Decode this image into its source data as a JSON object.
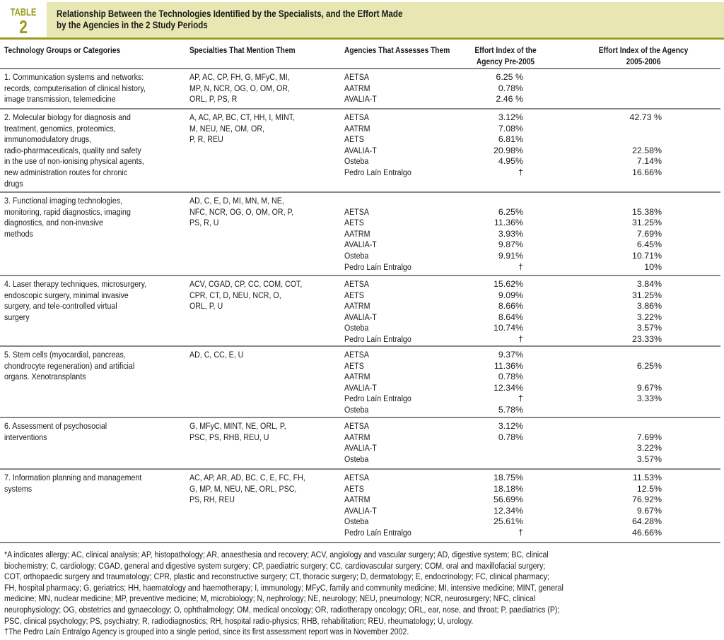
{
  "table_label": "TABLE",
  "table_number": "2",
  "title_lines": [
    "Relationship Between the Technologies Identified by the Specialists, and the Effort Made",
    "by the Agencies in the 2 Study Periods"
  ],
  "headers": {
    "technology": "Technology Groups or Categories",
    "specialties": "Specialties That Mention Them",
    "agencies": "Agencies That Assesses Them",
    "pre2005": [
      "Effort Index of the",
      "Agency Pre-2005"
    ],
    "y2005": [
      "Effort Index of the Agency",
      "2005-2006"
    ]
  },
  "accent_color": "#9a9a1e",
  "title_band_color": "#e8e6b3",
  "rows": [
    {
      "tech": [
        "1. Communication systems and networks:",
        "records, computerisation of clinical history,",
        "image transmission, telemedicine"
      ],
      "spec": [
        "AP, AC, CP, FH, G, MFyC, MI,",
        "MP, N, NCR, OG, O, OM, OR,",
        "ORL, P, PS, R"
      ],
      "agencies": [
        "AETSA",
        "AATRM",
        "AVALIA-T"
      ],
      "pre": [
        "6.25 %",
        "0.78%",
        "2.46 %"
      ],
      "post": [
        "",
        "",
        ""
      ]
    },
    {
      "tech": [
        "2. Molecular biology for diagnosis and",
        "treatment, genomics, proteomics,",
        "immunomodulatory drugs,",
        "radio-pharmaceuticals, quality and safety",
        "in the use of non-ionising physical agents,",
        "new administration routes for chronic",
        "drugs"
      ],
      "spec": [
        "A, AC, AP, BC, CT, HH, I, MINT,",
        "M, NEU, NE, OM, OR,",
        "P, R, REU"
      ],
      "agencies": [
        "AETSA",
        "AATRM",
        "AETS",
        "AVALIA-T",
        "Osteba",
        "Pedro Laín Entralgo"
      ],
      "pre": [
        "3.12%",
        "7.08%",
        "6.81%",
        "20.98%",
        "4.95%",
        "†"
      ],
      "post": [
        "42.73 %",
        "",
        "",
        "22.58%",
        "7.14%",
        "16.66%"
      ]
    },
    {
      "tech": [
        "3. Functional imaging technologies,",
        "monitoring, rapid diagnostics, imaging",
        "diagnostics, and non-invasive",
        "methods"
      ],
      "spec": [
        "AD, C, E, D, MI, MN, M, NE,",
        "NFC, NCR, OG, O, OM, OR, P,",
        "PS, R, U"
      ],
      "agencies": [
        "",
        "AETSA",
        "AETS",
        "AATRM",
        "AVALIA-T",
        "Osteba",
        "Pedro Laín Entralgo"
      ],
      "pre": [
        "",
        "6.25%",
        "11.36%",
        "3.93%",
        "9.87%",
        "9.91%",
        "†"
      ],
      "post": [
        "",
        "15.38%",
        "31.25%",
        "7.69%",
        "6.45%",
        "10.71%",
        "10%"
      ]
    },
    {
      "tech": [
        "4. Laser therapy techniques, microsurgery,",
        "endoscopic surgery, minimal invasive",
        "surgery, and tele-controlled virtual",
        "surgery"
      ],
      "spec": [
        "ACV, CGAD, CP, CC, COM, COT,",
        "CPR, CT, D, NEU, NCR, O,",
        "ORL, P, U"
      ],
      "agencies": [
        "AETSA",
        "AETS",
        "AATRM",
        "AVALIA-T",
        "Osteba",
        "Pedro Laín Entralgo"
      ],
      "pre": [
        "15.62%",
        "9.09%",
        "8.66%",
        "8.64%",
        "10.74%",
        "†"
      ],
      "post": [
        "3.84%",
        "31.25%",
        "3.86%",
        "3.22%",
        "3.57%",
        "23.33%"
      ]
    },
    {
      "tech": [
        "5. Stem cells (myocardial, pancreas,",
        "chondrocyte regeneration) and artificial",
        "organs. Xenotransplants"
      ],
      "spec": [
        " AD, C, CC, E, U"
      ],
      "agencies": [
        "AETSA",
        "AETS",
        "AATRM",
        "AVALIA-T",
        "Pedro Laín Entralgo",
        "Osteba"
      ],
      "pre": [
        "9.37%",
        "11.36%",
        "0.78%",
        "12.34%",
        "†",
        "5.78%"
      ],
      "post": [
        "",
        "6.25%",
        "",
        "9.67%",
        "3.33%",
        ""
      ]
    },
    {
      "tech": [
        "6. Assessment of psychosocial",
        "interventions"
      ],
      "spec": [
        "G, MFyC, MINT, NE, ORL, P,",
        "PSC, PS, RHB, REU, U"
      ],
      "agencies": [
        "AETSA",
        "AATRM",
        "AVALIA-T",
        "Osteba"
      ],
      "pre": [
        "3.12%",
        "0.78%",
        "",
        ""
      ],
      "post": [
        "",
        "7.69%",
        "3.22%",
        "3.57%"
      ]
    },
    {
      "tech": [
        "7. Information planning and management",
        "systems"
      ],
      "spec": [
        "AC, AP, AR, AD, BC, C, E, FC, FH,",
        "G, MP, M, NEU, NE, ORL, PSC,",
        "PS, RH, REU"
      ],
      "agencies": [
        "AETSA",
        "AETS",
        "AATRM",
        "AVALIA-T",
        "Osteba",
        "Pedro Laín Entralgo"
      ],
      "pre": [
        "18.75%",
        "18.18%",
        "56.69%",
        "12.34%",
        "25.61%",
        "†"
      ],
      "post": [
        "11.53%",
        "12.5%",
        "76.92%",
        "9.67%",
        "64.28%",
        "46.66%"
      ]
    }
  ],
  "footnote_lines": [
    "*A indicates allergy; AC, clinical analysis; AP, histopathology; AR, anaesthesia and recovery; ACV, angiology and vascular surgery; AD, digestive system; BC, clinical",
    "biochemistry; C, cardiology; CGAD, general and digestive system surgery; CP, paediatric surgery; CC, cardiovascular surgery; COM, oral and maxillofacial surgery;",
    "COT, orthopaedic surgery and traumatology; CPR, plastic and reconstructive surgery; CT, thoracic surgery; D, dermatology; E, endocrinology; FC, clinical pharmacy;",
    "FH, hospital pharmacy; G, geriatrics; HH, haematology and haemotherapy; I, immunology; MFyC, family and community medicine; MI, intensive medicine; MINT, general",
    "medicine; MN, nuclear medicine; MP, preventive medicine; M, microbiology; N, nephrology; NE, neurology; NEU, pneumology; NCR, neurosurgery; NFC, clinical",
    "neurophysiology; OG, obstetrics and gynaecology; O, ophthalmology; OM, medical oncology; OR, radiotherapy oncology; ORL, ear, nose, and throat; P, paediatrics (P);",
    "PSC, clinical psychology; PS, psychiatry; R, radiodiagnostics; RH, hospital radio-physics; RHB, rehabilitation; REU, rheumatology; U, urology.",
    "†The Pedro Laín Entralgo Agency is grouped into a single period, since its first assessment report was in November 2002."
  ]
}
